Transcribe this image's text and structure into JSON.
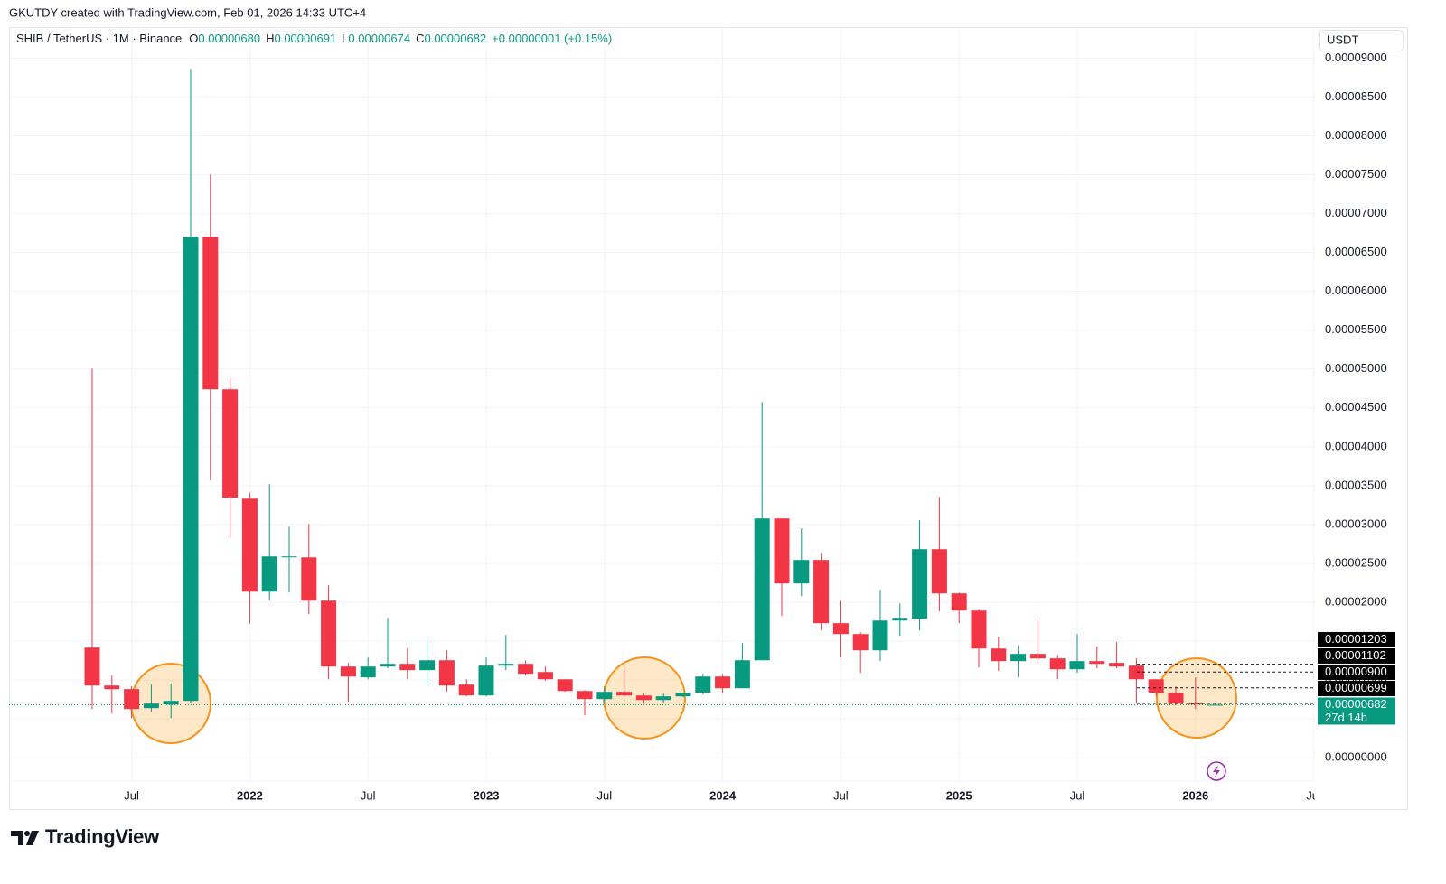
{
  "header": {
    "attribution": "GKUTDY created with TradingView.com, Feb 01, 2026 14:33 UTC+4",
    "symbol": "SHIB / TetherUS · 1M · Binance",
    "ohlc": [
      {
        "key": "O",
        "value": "0.00000680"
      },
      {
        "key": "H",
        "value": "0.00000691"
      },
      {
        "key": "L",
        "value": "0.00000674"
      },
      {
        "key": "C",
        "value": "0.00000682"
      }
    ],
    "change": "+0.00000001 (+0.15%)",
    "currency": "USDT"
  },
  "brand": "TradingView",
  "chart_data": {
    "type": "candlestick",
    "up_color": "#089981",
    "down_color": "#f23645",
    "grid": true,
    "x": [
      "2021-05",
      "2021-06",
      "2021-07",
      "2021-08",
      "2021-09",
      "2021-10",
      "2021-11",
      "2021-12",
      "2022-01",
      "2022-02",
      "2022-03",
      "2022-04",
      "2022-05",
      "2022-06",
      "2022-07",
      "2022-08",
      "2022-09",
      "2022-10",
      "2022-11",
      "2022-12",
      "2023-01",
      "2023-02",
      "2023-03",
      "2023-04",
      "2023-05",
      "2023-06",
      "2023-07",
      "2023-08",
      "2023-09",
      "2023-10",
      "2023-11",
      "2023-12",
      "2024-01",
      "2024-02",
      "2024-03",
      "2024-04",
      "2024-05",
      "2024-06",
      "2024-07",
      "2024-08",
      "2024-09",
      "2024-10",
      "2024-11",
      "2024-12",
      "2025-01",
      "2025-02",
      "2025-03",
      "2025-04",
      "2025-05",
      "2025-06",
      "2025-07",
      "2025-08",
      "2025-09",
      "2025-10",
      "2025-11",
      "2025-12",
      "2026-01",
      "2026-02"
    ],
    "open": [
      1.417e-05,
      9.29e-06,
      8.83e-06,
      6.39e-06,
      6.85e-06,
      7.32e-06,
      6.701e-05,
      4.739e-05,
      3.333e-05,
      2.137e-05,
      2.578e-05,
      2.578e-05,
      2.021e-05,
      1.173e-05,
      1.034e-05,
      1.173e-05,
      1.208e-05,
      1.127e-05,
      1.254e-05,
      9.41e-06,
      8.01e-06,
      1.185e-05,
      1.208e-05,
      1.103e-05,
      1.01e-05,
      8.59e-06,
      7.55e-06,
      8.48e-06,
      8.01e-06,
      7.43e-06,
      7.9e-06,
      8.36e-06,
      1.045e-05,
      8.94e-06,
      1.254e-05,
      3.078e-05,
      2.242e-05,
      2.544e-05,
      1.731e-05,
      1.591e-05,
      1.382e-05,
      1.765e-05,
      1.789e-05,
      2.683e-05,
      2.114e-05,
      1.893e-05,
      1.405e-05,
      1.243e-05,
      1.336e-05,
      1.278e-05,
      1.138e-05,
      1.243e-05,
      1.22e-05,
      1.185e-05,
      1.01e-05,
      8.36e-06,
      6.97e-06,
      6.8e-06
    ],
    "high": [
      5.006e-05,
      1.057e-05,
      9.18e-06,
      9.41e-06,
      9.52e-06,
      8.862e-05,
      7.503e-05,
      4.89e-05,
      3.415e-05,
      3.519e-05,
      2.973e-05,
      3.008e-05,
      2.218e-05,
      1.22e-05,
      1.289e-05,
      1.8e-05,
      1.405e-05,
      1.521e-05,
      1.382e-05,
      1.01e-05,
      1.289e-05,
      1.58e-05,
      1.254e-05,
      1.173e-05,
      1.01e-05,
      8.71e-06,
      9.18e-06,
      1.15e-05,
      8.25e-06,
      8.25e-06,
      8.36e-06,
      1.08e-05,
      1.08e-05,
      1.475e-05,
      4.576e-05,
      3.078e-05,
      2.95e-05,
      2.636e-05,
      2.021e-05,
      1.614e-05,
      2.16e-05,
      1.986e-05,
      3.055e-05,
      3.357e-05,
      2.125e-05,
      1.905e-05,
      1.556e-05,
      1.44e-05,
      1.777e-05,
      1.324e-05,
      1.591e-05,
      1.429e-05,
      1.487e-05,
      1.278e-05,
      1.01e-05,
      9.18e-06,
      1.034e-05,
      6.91e-06
    ],
    "low": [
      6.27e-06,
      5.69e-06,
      5.11e-06,
      5.92e-06,
      5.11e-06,
      7e-06,
      3.566e-05,
      2.834e-05,
      1.719e-05,
      2.021e-05,
      2.125e-05,
      1.847e-05,
      1.01e-05,
      7.2e-06,
      1.01e-05,
      1.15e-05,
      1.01e-05,
      9.29e-06,
      8.48e-06,
      7.9e-06,
      7.9e-06,
      1.127e-05,
      1.057e-05,
      9.87e-06,
      8.48e-06,
      5.46e-06,
      6.97e-06,
      7.32e-06,
      6.97e-06,
      6.97e-06,
      7.78e-06,
      8.13e-06,
      8.25e-06,
      8.94e-06,
      1.254e-05,
      1.823e-05,
      2.079e-05,
      1.638e-05,
      1.289e-05,
      1.092e-05,
      1.243e-05,
      1.568e-05,
      1.638e-05,
      1.882e-05,
      1.731e-05,
      1.161e-05,
      1.115e-05,
      1.034e-05,
      1.22e-05,
      1.01e-05,
      1.092e-05,
      1.15e-05,
      1.15e-05,
      6.97e-06,
      7.9e-06,
      6.74e-06,
      6.27e-06,
      6.74e-06
    ],
    "close": [
      9.29e-06,
      8.83e-06,
      6.27e-06,
      6.97e-06,
      7.32e-06,
      6.701e-05,
      4.739e-05,
      3.345e-05,
      2.137e-05,
      2.59e-05,
      2.59e-05,
      2.021e-05,
      1.173e-05,
      1.045e-05,
      1.173e-05,
      1.208e-05,
      1.127e-05,
      1.254e-05,
      9.29e-06,
      8.01e-06,
      1.185e-05,
      1.208e-05,
      1.08e-05,
      1.01e-05,
      8.59e-06,
      7.55e-06,
      8.48e-06,
      8.01e-06,
      7.43e-06,
      7.9e-06,
      8.36e-06,
      1.045e-05,
      8.94e-06,
      1.254e-05,
      3.078e-05,
      2.242e-05,
      2.544e-05,
      1.731e-05,
      1.591e-05,
      1.382e-05,
      1.765e-05,
      1.8e-05,
      2.683e-05,
      2.114e-05,
      1.893e-05,
      1.405e-05,
      1.243e-05,
      1.336e-05,
      1.278e-05,
      1.138e-05,
      1.243e-05,
      1.208e-05,
      1.173e-05,
      1.01e-05,
      8.36e-06,
      6.97e-06,
      6.85e-06,
      6.82e-06
    ],
    "xlim": [
      "2021-01",
      "2026-07"
    ],
    "xticks": [
      {
        "value": "2021-07",
        "label": "Jul"
      },
      {
        "value": "2022-01",
        "label": "2022"
      },
      {
        "value": "2022-07",
        "label": "Jul"
      },
      {
        "value": "2023-01",
        "label": "2023"
      },
      {
        "value": "2023-07",
        "label": "Jul"
      },
      {
        "value": "2024-01",
        "label": "2024"
      },
      {
        "value": "2024-07",
        "label": "Jul"
      },
      {
        "value": "2025-01",
        "label": "2025"
      },
      {
        "value": "2025-07",
        "label": "Jul"
      },
      {
        "value": "2026-01",
        "label": "2026"
      },
      {
        "value": "2026-07",
        "label": "Jul"
      }
    ],
    "ylim": [
      -3e-06,
      9.4e-05
    ],
    "yticks": [
      {
        "value": 0,
        "label": "0.00000000"
      },
      {
        "value": 5e-06,
        "label": "0.00000500"
      },
      {
        "value": 1e-05,
        "label": "0.00001000"
      },
      {
        "value": 1.5e-05,
        "label": "0.00001500"
      },
      {
        "value": 2e-05,
        "label": "0.00002000"
      },
      {
        "value": 2.5e-05,
        "label": "0.00002500"
      },
      {
        "value": 3e-05,
        "label": "0.00003000"
      },
      {
        "value": 3.5e-05,
        "label": "0.00003500"
      },
      {
        "value": 4e-05,
        "label": "0.00004000"
      },
      {
        "value": 4.5e-05,
        "label": "0.00004500"
      },
      {
        "value": 5e-05,
        "label": "0.00005000"
      },
      {
        "value": 5.5e-05,
        "label": "0.00005500"
      },
      {
        "value": 6e-05,
        "label": "0.00006000"
      },
      {
        "value": 6.5e-05,
        "label": "0.00006500"
      },
      {
        "value": 7e-05,
        "label": "0.00007000"
      },
      {
        "value": 7.5e-05,
        "label": "0.00007500"
      },
      {
        "value": 8e-05,
        "label": "0.00008000"
      },
      {
        "value": 8.5e-05,
        "label": "0.00008500"
      },
      {
        "value": 9e-05,
        "label": "0.00009000"
      }
    ],
    "price_lines": [
      {
        "value": 1.203e-05,
        "label": "0.00001203"
      },
      {
        "value": 1.102e-05,
        "label": "0.00001102"
      },
      {
        "value": 9e-06,
        "label": "0.00000900"
      },
      {
        "value": 6.99e-06,
        "label": "0.00000699"
      }
    ],
    "last_price": {
      "value": 6.82e-06,
      "label": "0.00000682",
      "countdown": "27d 14h"
    }
  }
}
